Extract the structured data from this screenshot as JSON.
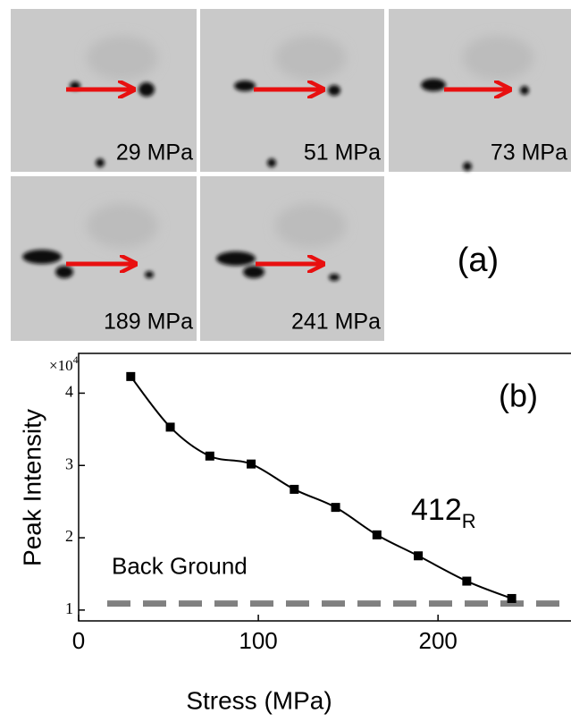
{
  "figure_a": {
    "panel_label": "(a)",
    "images": [
      {
        "label": "29 MPa"
      },
      {
        "label": "51 MPa"
      },
      {
        "label": "73 MPa"
      },
      {
        "label": "189 MPa"
      },
      {
        "label": "241 MPa"
      }
    ]
  },
  "chart_data": {
    "type": "line",
    "x_label": "Stress (MPa)",
    "y_label": "Peak Intensity",
    "y_multiplier": {
      "base": "×10",
      "exponent": "4"
    },
    "panel_label": "(b)",
    "annotation": {
      "text": "412",
      "subscript": "R"
    },
    "x": [
      29,
      51,
      73,
      96,
      120,
      143,
      166,
      189,
      216,
      241
    ],
    "series": [
      {
        "color": "#000000",
        "values": [
          4.23,
          3.53,
          3.13,
          3.02,
          2.67,
          2.42,
          2.04,
          1.75,
          1.4,
          1.16
        ]
      }
    ],
    "baseline": {
      "label": "Back Ground",
      "value": 1.09,
      "color": "#808080"
    },
    "xlim": [
      0,
      274
    ],
    "xticks": [
      0,
      100,
      200
    ],
    "ylim": [
      0.85,
      4.55
    ],
    "yticks": [
      1,
      2,
      3,
      4
    ]
  }
}
